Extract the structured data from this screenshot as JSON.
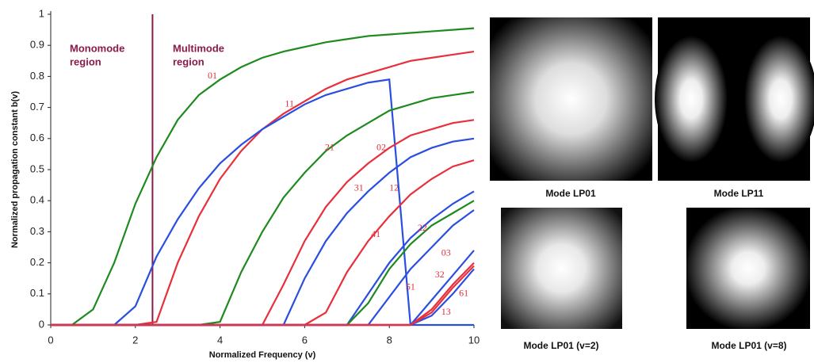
{
  "chart_data": {
    "type": "line",
    "xlabel": "Normalized Frequency (v)",
    "ylabel": "Normalized propagation constant b(v)",
    "xlim": [
      0,
      10
    ],
    "ylim": [
      0,
      1
    ],
    "xticks": [
      0,
      2,
      4,
      6,
      8,
      10
    ],
    "yticks": [
      0,
      0.1,
      0.2,
      0.3,
      0.4,
      0.5,
      0.6,
      0.7,
      0.8,
      0.9,
      1
    ],
    "cutoff_line": 2.405,
    "regions": [
      {
        "lines": [
          "Monomode",
          "region"
        ]
      },
      {
        "lines": [
          "Multimode",
          "region"
        ]
      }
    ],
    "x": [
      0,
      0.5,
      1,
      1.5,
      2,
      2.5,
      3,
      3.5,
      4,
      4.5,
      5,
      5.5,
      6,
      6.5,
      7,
      7.5,
      8,
      8.5,
      9,
      9.5,
      10
    ],
    "series": [
      {
        "name": "01",
        "color": "#1f8a1f",
        "values": [
          0,
          0,
          0.05,
          0.2,
          0.39,
          0.54,
          0.66,
          0.74,
          0.79,
          0.83,
          0.86,
          0.88,
          0.895,
          0.91,
          0.92,
          0.93,
          0.935,
          0.94,
          0.945,
          0.95,
          0.955
        ]
      },
      {
        "name": "11",
        "color": "#e8303c",
        "values": [
          0,
          0,
          0,
          0,
          0,
          0.01,
          0.2,
          0.35,
          0.47,
          0.56,
          0.63,
          0.68,
          0.72,
          0.76,
          0.79,
          0.81,
          0.83,
          0.85,
          0.86,
          0.87,
          0.88
        ]
      },
      {
        "name": "21",
        "color": "#2a4fe0",
        "values": [
          0,
          0,
          0,
          0,
          0.06,
          0.22,
          0.34,
          0.44,
          0.52,
          0.58,
          0.63,
          0.67,
          0.71,
          0.74,
          0.76,
          0.78,
          0.79,
          0,
          0,
          0,
          0
        ]
      },
      {
        "name": "02",
        "color": "#1f8a1f",
        "values": [
          0,
          0,
          0,
          0,
          0,
          0,
          0,
          0,
          0.01,
          0.17,
          0.3,
          0.41,
          0.49,
          0.56,
          0.61,
          0.65,
          0.69,
          0.71,
          0.73,
          0.74,
          0.75
        ]
      },
      {
        "name": "31",
        "color": "#e8303c",
        "values": [
          0,
          0,
          0,
          0,
          0,
          0,
          0,
          0,
          0,
          0,
          0,
          0.13,
          0.27,
          0.38,
          0.46,
          0.52,
          0.57,
          0.61,
          0.63,
          0.65,
          0.66
        ]
      },
      {
        "name": "12",
        "color": "#2a4fe0",
        "values": [
          0,
          0,
          0,
          0,
          0,
          0,
          0,
          0,
          0,
          0,
          0,
          0,
          0.15,
          0.27,
          0.36,
          0.43,
          0.49,
          0.54,
          0.57,
          0.59,
          0.6
        ]
      },
      {
        "name": "41",
        "color": "#e8303c",
        "values": [
          0,
          0,
          0,
          0,
          0,
          0,
          0,
          0,
          0,
          0,
          0,
          0,
          0,
          0.04,
          0.17,
          0.27,
          0.35,
          0.42,
          0.47,
          0.51,
          0.53
        ]
      },
      {
        "name": "22",
        "color": "#2a4fe0",
        "values": [
          0,
          0,
          0,
          0,
          0,
          0,
          0,
          0,
          0,
          0,
          0,
          0,
          0,
          0,
          0,
          0.1,
          0.2,
          0.28,
          0.34,
          0.39,
          0.43
        ]
      },
      {
        "name": "03",
        "color": "#1f8a1f",
        "values": [
          0,
          0,
          0,
          0,
          0,
          0,
          0,
          0,
          0,
          0,
          0,
          0,
          0,
          0,
          0,
          0.07,
          0.18,
          0.26,
          0.32,
          0.36,
          0.4
        ]
      },
      {
        "color": "#2a4fe0",
        "values": [
          0,
          0,
          0,
          0,
          0,
          0,
          0,
          0,
          0,
          0,
          0,
          0,
          0,
          0,
          0,
          0,
          0.09,
          0.18,
          0.25,
          0.32,
          0.37
        ]
      },
      {
        "name": "51",
        "color": "#2a4fe0",
        "values": [
          0,
          0,
          0,
          0,
          0,
          0,
          0,
          0,
          0,
          0,
          0,
          0,
          0,
          0,
          0,
          0,
          0,
          0,
          0.08,
          0.16,
          0.24
        ]
      },
      {
        "name": "32",
        "color": "#e8303c",
        "values": [
          0,
          0,
          0,
          0,
          0,
          0,
          0,
          0,
          0,
          0,
          0,
          0,
          0,
          0,
          0,
          0,
          0,
          0,
          0.05,
          0.13,
          0.2
        ]
      },
      {
        "name": "61",
        "color": "#2a4fe0",
        "values": [
          0,
          0,
          0,
          0,
          0,
          0,
          0,
          0,
          0,
          0,
          0,
          0,
          0,
          0,
          0,
          0,
          0,
          0,
          0.03,
          0.1,
          0.18
        ]
      },
      {
        "name": "13",
        "color": "#e8303c",
        "values": [
          0,
          0,
          0,
          0,
          0,
          0,
          0,
          0,
          0,
          0,
          0,
          0,
          0,
          0,
          0,
          0,
          0,
          0,
          0.04,
          0.12,
          0.19
        ]
      }
    ]
  },
  "panels": [
    {
      "caption": "Mode LP01"
    },
    {
      "caption": "Mode LP11"
    },
    {
      "caption": "Mode LP01 (v=2)"
    },
    {
      "caption": "Mode LP01 (v=8)"
    }
  ]
}
